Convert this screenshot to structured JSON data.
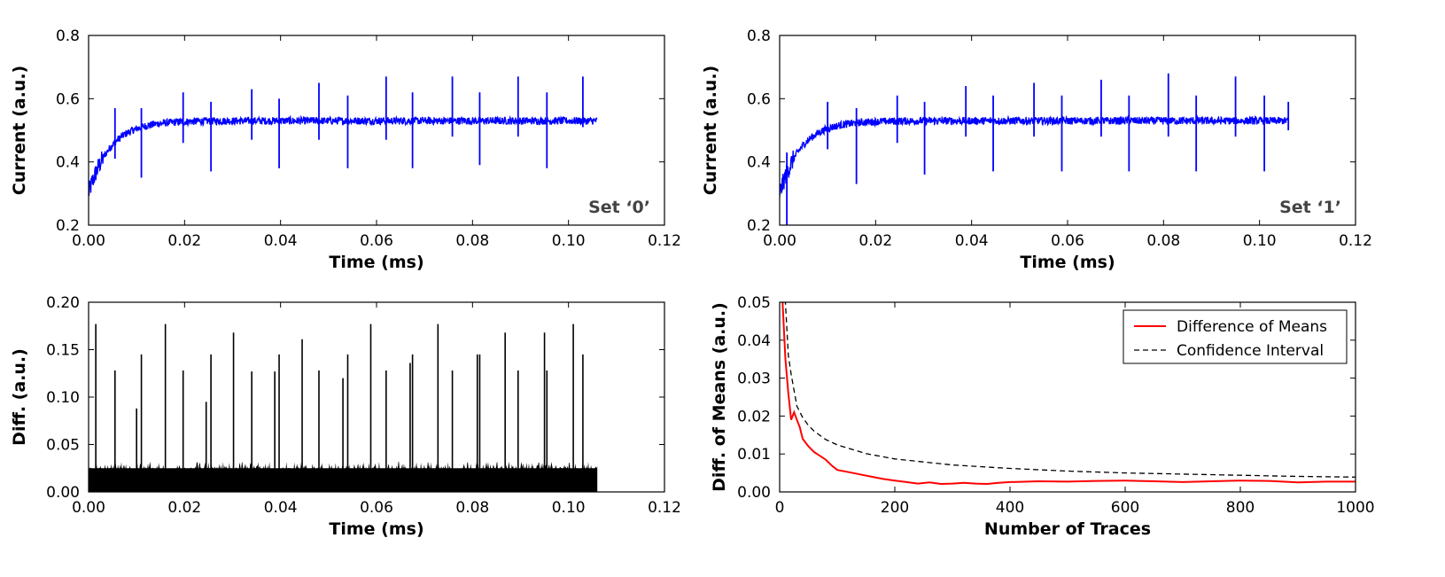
{
  "chart_data": [
    {
      "id": "set0",
      "type": "line",
      "xlabel": "Time (ms)",
      "ylabel": "Current (a.u.)",
      "xlim": [
        0,
        0.12
      ],
      "ylim": [
        0.2,
        0.8
      ],
      "xticks": [
        "0.00",
        "0.02",
        "0.04",
        "0.06",
        "0.08",
        "0.10",
        "0.12"
      ],
      "yticks": [
        "0.2",
        "0.4",
        "0.6",
        "0.8"
      ],
      "annotation": "Set ‘0’",
      "series": [
        {
          "name": "current",
          "color": "#0000ff",
          "x_end": 0.106,
          "baseline": 0.53,
          "start_level": 0.3,
          "noise": 0.012,
          "spikes": [
            {
              "x": 0.0055,
              "max": 0.57,
              "min": 0.41
            },
            {
              "x": 0.011,
              "max": 0.57,
              "min": 0.35
            },
            {
              "x": 0.0197,
              "max": 0.62,
              "min": 0.46
            },
            {
              "x": 0.0255,
              "max": 0.59,
              "min": 0.37
            },
            {
              "x": 0.034,
              "max": 0.63,
              "min": 0.47
            },
            {
              "x": 0.0397,
              "max": 0.6,
              "min": 0.38
            },
            {
              "x": 0.048,
              "max": 0.65,
              "min": 0.47
            },
            {
              "x": 0.054,
              "max": 0.61,
              "min": 0.38
            },
            {
              "x": 0.062,
              "max": 0.67,
              "min": 0.47
            },
            {
              "x": 0.0675,
              "max": 0.62,
              "min": 0.38
            },
            {
              "x": 0.0758,
              "max": 0.67,
              "min": 0.48
            },
            {
              "x": 0.0815,
              "max": 0.62,
              "min": 0.39
            },
            {
              "x": 0.0895,
              "max": 0.67,
              "min": 0.48
            },
            {
              "x": 0.0955,
              "max": 0.62,
              "min": 0.38
            },
            {
              "x": 0.103,
              "max": 0.67,
              "min": 0.51
            }
          ]
        }
      ]
    },
    {
      "id": "set1",
      "type": "line",
      "xlabel": "Time (ms)",
      "ylabel": "Current (a.u.)",
      "xlim": [
        0,
        0.12
      ],
      "ylim": [
        0.2,
        0.8
      ],
      "xticks": [
        "0.00",
        "0.02",
        "0.04",
        "0.06",
        "0.08",
        "0.10",
        "0.12"
      ],
      "yticks": [
        "0.2",
        "0.4",
        "0.6",
        "0.8"
      ],
      "annotation": "Set ‘1’",
      "series": [
        {
          "name": "current",
          "color": "#0000ff",
          "x_end": 0.106,
          "baseline": 0.53,
          "start_level": 0.3,
          "noise": 0.012,
          "spikes": [
            {
              "x": 0.0015,
              "max": 0.43,
              "min": 0.2
            },
            {
              "x": 0.01,
              "max": 0.59,
              "min": 0.44
            },
            {
              "x": 0.016,
              "max": 0.57,
              "min": 0.33
            },
            {
              "x": 0.0245,
              "max": 0.61,
              "min": 0.46
            },
            {
              "x": 0.0302,
              "max": 0.59,
              "min": 0.36
            },
            {
              "x": 0.0388,
              "max": 0.64,
              "min": 0.48
            },
            {
              "x": 0.0445,
              "max": 0.61,
              "min": 0.37
            },
            {
              "x": 0.053,
              "max": 0.65,
              "min": 0.48
            },
            {
              "x": 0.0588,
              "max": 0.61,
              "min": 0.37
            },
            {
              "x": 0.067,
              "max": 0.66,
              "min": 0.48
            },
            {
              "x": 0.0728,
              "max": 0.61,
              "min": 0.37
            },
            {
              "x": 0.081,
              "max": 0.68,
              "min": 0.48
            },
            {
              "x": 0.0868,
              "max": 0.61,
              "min": 0.37
            },
            {
              "x": 0.095,
              "max": 0.67,
              "min": 0.48
            },
            {
              "x": 0.101,
              "max": 0.61,
              "min": 0.37
            },
            {
              "x": 0.106,
              "max": 0.59,
              "min": 0.5
            }
          ]
        }
      ]
    },
    {
      "id": "diff",
      "type": "line",
      "xlabel": "Time (ms)",
      "ylabel": "Diff. (a.u.)",
      "xlim": [
        0,
        0.12
      ],
      "ylim": [
        0,
        0.2
      ],
      "xticks": [
        "0.00",
        "0.02",
        "0.04",
        "0.06",
        "0.08",
        "0.10",
        "0.12"
      ],
      "yticks": [
        "0.00",
        "0.05",
        "0.10",
        "0.15",
        "0.20"
      ],
      "series": [
        {
          "name": "difference",
          "color": "#000000",
          "x_end": 0.106,
          "floor_band": [
            0.0,
            0.025
          ],
          "noise_cap": 0.032,
          "spikes": [
            {
              "x": 0.0015,
              "max": 0.177
            },
            {
              "x": 0.0055,
              "max": 0.128
            },
            {
              "x": 0.01,
              "max": 0.088
            },
            {
              "x": 0.011,
              "max": 0.145
            },
            {
              "x": 0.016,
              "max": 0.177
            },
            {
              "x": 0.0197,
              "max": 0.128
            },
            {
              "x": 0.0245,
              "max": 0.095
            },
            {
              "x": 0.0255,
              "max": 0.145
            },
            {
              "x": 0.0302,
              "max": 0.168
            },
            {
              "x": 0.034,
              "max": 0.127
            },
            {
              "x": 0.0388,
              "max": 0.127
            },
            {
              "x": 0.0397,
              "max": 0.145
            },
            {
              "x": 0.0445,
              "max": 0.161
            },
            {
              "x": 0.048,
              "max": 0.128
            },
            {
              "x": 0.053,
              "max": 0.12
            },
            {
              "x": 0.054,
              "max": 0.145
            },
            {
              "x": 0.0588,
              "max": 0.177
            },
            {
              "x": 0.062,
              "max": 0.128
            },
            {
              "x": 0.067,
              "max": 0.136
            },
            {
              "x": 0.0675,
              "max": 0.145
            },
            {
              "x": 0.0728,
              "max": 0.177
            },
            {
              "x": 0.0758,
              "max": 0.128
            },
            {
              "x": 0.081,
              "max": 0.145
            },
            {
              "x": 0.0815,
              "max": 0.145
            },
            {
              "x": 0.0868,
              "max": 0.168
            },
            {
              "x": 0.0895,
              "max": 0.128
            },
            {
              "x": 0.095,
              "max": 0.168
            },
            {
              "x": 0.0955,
              "max": 0.128
            },
            {
              "x": 0.101,
              "max": 0.177
            },
            {
              "x": 0.103,
              "max": 0.145
            }
          ]
        }
      ]
    },
    {
      "id": "dom",
      "type": "line",
      "xlabel": "Number of Traces",
      "ylabel": "Diff. of Means (a.u.)",
      "xlim": [
        0,
        1000
      ],
      "ylim": [
        0,
        0.05
      ],
      "xticks": [
        "0",
        "200",
        "400",
        "600",
        "800",
        "1000"
      ],
      "yticks": [
        "0.00",
        "0.01",
        "0.02",
        "0.03",
        "0.04",
        "0.05"
      ],
      "legend": {
        "position": "top-right",
        "entries": [
          "Difference of Means",
          "Confidence Interval"
        ]
      },
      "series": [
        {
          "name": "Difference of Means",
          "color": "#ff0000",
          "style": "solid",
          "x": [
            5,
            10,
            15,
            20,
            25,
            30,
            35,
            40,
            50,
            60,
            70,
            80,
            90,
            100,
            120,
            140,
            160,
            180,
            200,
            220,
            240,
            260,
            280,
            300,
            320,
            340,
            360,
            380,
            400,
            450,
            500,
            550,
            600,
            650,
            700,
            750,
            800,
            850,
            900,
            950,
            1000
          ],
          "y": [
            0.05,
            0.035,
            0.026,
            0.019,
            0.021,
            0.019,
            0.017,
            0.014,
            0.012,
            0.0105,
            0.0095,
            0.0085,
            0.007,
            0.0058,
            0.0052,
            0.0046,
            0.004,
            0.0034,
            0.003,
            0.0026,
            0.0022,
            0.0025,
            0.0021,
            0.0022,
            0.0024,
            0.0022,
            0.0021,
            0.0024,
            0.0026,
            0.0028,
            0.0027,
            0.0029,
            0.003,
            0.0028,
            0.0026,
            0.0028,
            0.003,
            0.0029,
            0.0025,
            0.0027,
            0.0027
          ]
        },
        {
          "name": "Confidence Interval",
          "color": "#000000",
          "style": "dashed",
          "x": [
            5,
            10,
            15,
            20,
            30,
            40,
            50,
            60,
            80,
            100,
            150,
            200,
            300,
            400,
            500,
            600,
            700,
            800,
            900,
            1000
          ],
          "y": [
            0.05,
            0.05,
            0.036,
            0.031,
            0.0226,
            0.0196,
            0.0175,
            0.016,
            0.0138,
            0.0124,
            0.0101,
            0.0087,
            0.0071,
            0.0062,
            0.0055,
            0.005,
            0.0047,
            0.0044,
            0.0041,
            0.0039
          ]
        }
      ]
    }
  ]
}
